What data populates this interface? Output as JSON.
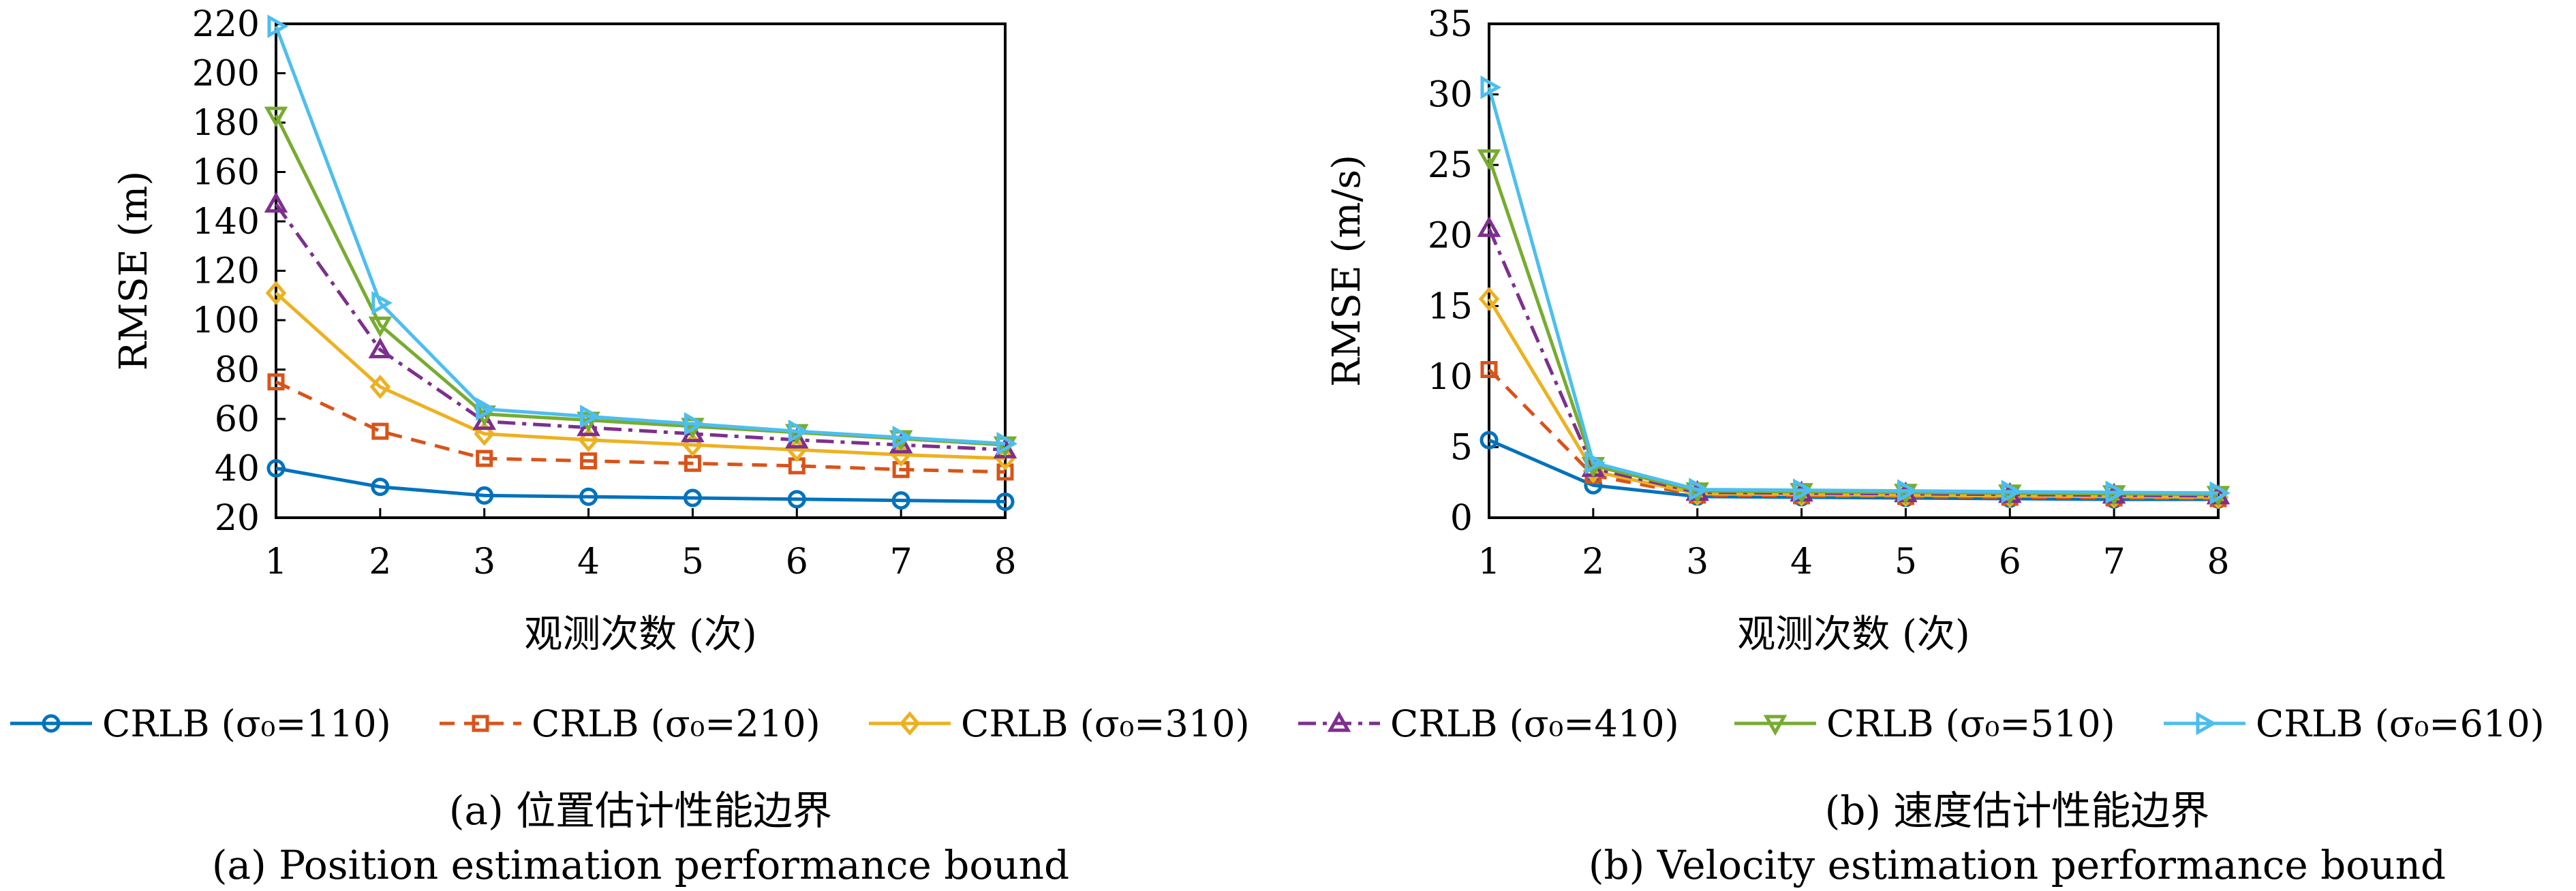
{
  "legend": {
    "entries": [
      {
        "label": "CRLB (σ₀=110)",
        "color": "#0072BD",
        "marker": "circle",
        "dash": "solid"
      },
      {
        "label": "CRLB (σ₀=210)",
        "color": "#D95319",
        "marker": "square",
        "dash": "dashed"
      },
      {
        "label": "CRLB (σ₀=310)",
        "color": "#EDB120",
        "marker": "diamond",
        "dash": "solid"
      },
      {
        "label": "CRLB (σ₀=410)",
        "color": "#7E2F8E",
        "marker": "triangle-up",
        "dash": "dashdot"
      },
      {
        "label": "CRLB (σ₀=510)",
        "color": "#77AC30",
        "marker": "triangle-down",
        "dash": "solid"
      },
      {
        "label": "CRLB (σ₀=610)",
        "color": "#4DBEEE",
        "marker": "triangle-right",
        "dash": "solid"
      }
    ]
  },
  "captions": {
    "a_cn": "(a) 位置估计性能边界",
    "a_en": "(a) Position estimation performance bound",
    "b_cn": "(b) 速度估计性能边界",
    "b_en": "(b) Velocity estimation performance bound"
  },
  "chart_data": [
    {
      "type": "line",
      "xlabel": "观测次数 (次)",
      "ylabel": "RMSE (m)",
      "x": [
        1,
        2,
        3,
        4,
        5,
        6,
        7,
        8
      ],
      "xlim": [
        1,
        8
      ],
      "ylim": [
        20,
        220
      ],
      "yticks": [
        20,
        40,
        60,
        80,
        100,
        120,
        140,
        160,
        180,
        200,
        220
      ],
      "grid": false,
      "series": [
        {
          "name": "CRLB (σ₀=110)",
          "values": [
            40,
            32.5,
            29,
            28.5,
            28,
            27.5,
            27,
            26.5
          ]
        },
        {
          "name": "CRLB (σ₀=210)",
          "values": [
            75,
            55,
            44,
            43,
            42,
            41,
            39.5,
            38.5
          ]
        },
        {
          "name": "CRLB (σ₀=310)",
          "values": [
            111,
            73,
            54,
            51.5,
            49.5,
            47.5,
            45.5,
            44
          ]
        },
        {
          "name": "CRLB (σ₀=410)",
          "values": [
            147,
            88,
            59,
            56.5,
            54,
            51.5,
            49.5,
            47.5
          ]
        },
        {
          "name": "CRLB (σ₀=510)",
          "values": [
            183,
            98,
            62,
            59.5,
            57,
            54.5,
            52,
            49.5
          ]
        },
        {
          "name": "CRLB (σ₀=610)",
          "values": [
            219,
            107,
            64,
            61,
            58,
            55,
            52.5,
            50
          ]
        }
      ]
    },
    {
      "type": "line",
      "xlabel": "观测次数 (次)",
      "ylabel": "RMSE (m/s)",
      "x": [
        1,
        2,
        3,
        4,
        5,
        6,
        7,
        8
      ],
      "xlim": [
        1,
        8
      ],
      "ylim": [
        0,
        35
      ],
      "yticks": [
        0,
        5,
        10,
        15,
        20,
        25,
        30,
        35
      ],
      "grid": false,
      "series": [
        {
          "name": "CRLB (σ₀=110)",
          "values": [
            5.5,
            2.3,
            1.5,
            1.45,
            1.4,
            1.35,
            1.3,
            1.3
          ]
        },
        {
          "name": "CRLB (σ₀=210)",
          "values": [
            10.5,
            3.0,
            1.6,
            1.55,
            1.5,
            1.45,
            1.4,
            1.35
          ]
        },
        {
          "name": "CRLB (σ₀=310)",
          "values": [
            15.5,
            3.3,
            1.7,
            1.65,
            1.6,
            1.55,
            1.5,
            1.45
          ]
        },
        {
          "name": "CRLB (σ₀=410)",
          "values": [
            20.5,
            3.5,
            1.8,
            1.75,
            1.7,
            1.65,
            1.6,
            1.55
          ]
        },
        {
          "name": "CRLB (σ₀=510)",
          "values": [
            25.5,
            3.7,
            1.9,
            1.85,
            1.8,
            1.75,
            1.7,
            1.65
          ]
        },
        {
          "name": "CRLB (σ₀=610)",
          "values": [
            30.5,
            3.9,
            2.0,
            1.95,
            1.9,
            1.85,
            1.8,
            1.75
          ]
        }
      ]
    }
  ]
}
